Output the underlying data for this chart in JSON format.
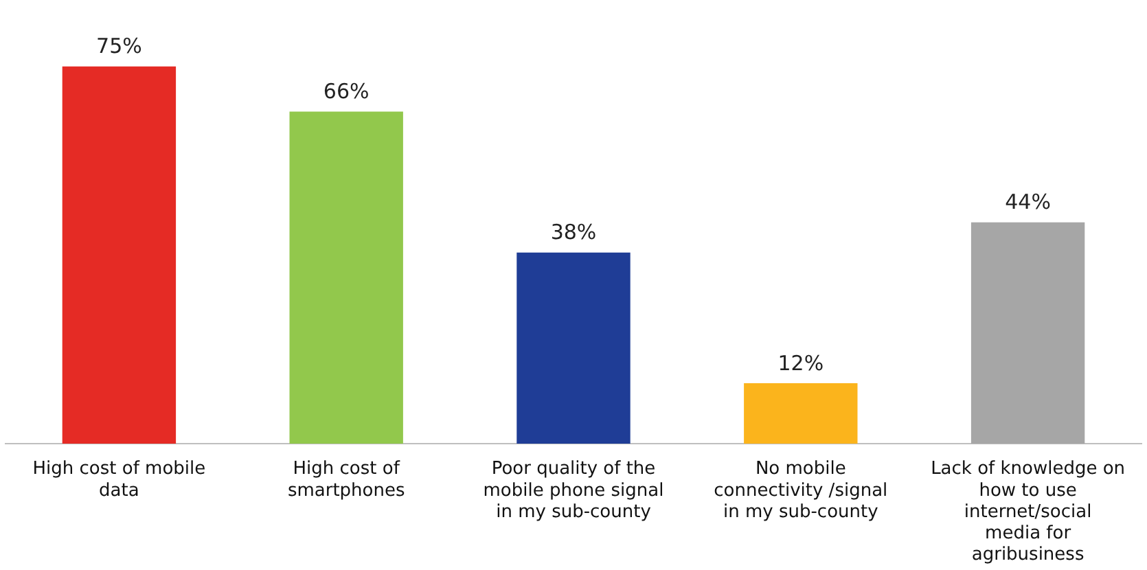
{
  "chart_data": {
    "type": "bar",
    "categories": [
      "High cost of mobile data",
      "High cost of smartphones",
      "Poor quality of the mobile phone signal in my sub-county",
      "No mobile connectivity /signal in my sub-county",
      "Lack of knowledge on how to use internet/social media for agribusiness"
    ],
    "values": [
      75,
      66,
      38,
      12,
      44
    ],
    "colors": [
      "#e52b25",
      "#92c84c",
      "#1f3d96",
      "#fbb41c",
      "#a6a6a6"
    ],
    "value_labels": [
      "75%",
      "66%",
      "38%",
      "12%",
      "44%"
    ]
  }
}
